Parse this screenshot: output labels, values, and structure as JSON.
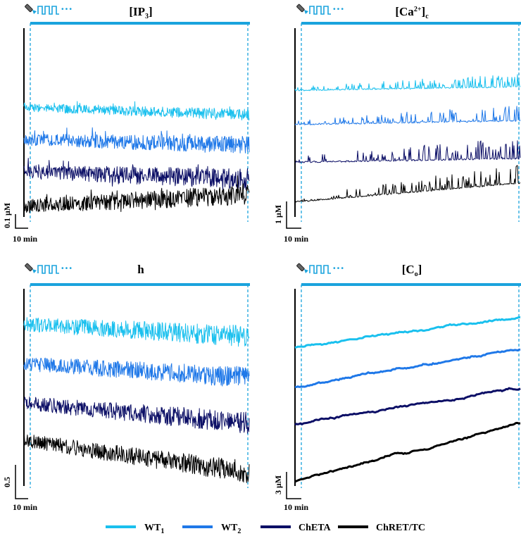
{
  "colors": {
    "WT1": "#1ac0ee",
    "WT2": "#1f78e8",
    "ChETA": "#0c0f66",
    "ChRET/TC": "#000000",
    "stim": "#1aa3dd",
    "axis": "#000000"
  },
  "legend": {
    "items": [
      {
        "name": "WT",
        "sub": "1",
        "series": "WT1"
      },
      {
        "name": "WT",
        "sub": "2",
        "series": "WT2"
      },
      {
        "name": "ChETA",
        "sub": "",
        "series": "ChETA"
      },
      {
        "name": "ChRET/TC",
        "sub": "",
        "series": "ChRET/TC"
      }
    ]
  },
  "stim_icon": {
    "name": "light-pulse-icon",
    "ellipsis": "···"
  },
  "chart_data": [
    {
      "type": "line",
      "panel": "IP3",
      "title": {
        "pre": "[IP",
        "sub": "3",
        "post": "]"
      },
      "scalebar": {
        "y_label": "0.1 μM",
        "x_label": "10 min"
      },
      "x_range_min": [
        0,
        60
      ],
      "series": [
        {
          "name": "WT1",
          "start": 0.58,
          "end": 0.54,
          "noise": 0.02,
          "spikes": 0.5,
          "style": "noisy"
        },
        {
          "name": "WT2",
          "start": 0.41,
          "end": 0.38,
          "noise": 0.03,
          "spikes": 0.5,
          "style": "noisy"
        },
        {
          "name": "ChETA",
          "start": 0.24,
          "end": 0.2,
          "noise": 0.035,
          "spikes": 0.6,
          "style": "noisy"
        },
        {
          "name": "ChRET/TC",
          "start": 0.055,
          "end": 0.12,
          "noise": 0.035,
          "spikes": 0.6,
          "style": "noisy"
        }
      ]
    },
    {
      "type": "line",
      "panel": "Ca2+c",
      "title": {
        "pre": "[Ca",
        "sup": "2+",
        "post": "]",
        "sub": "c"
      },
      "scalebar": {
        "y_label": "1 μM",
        "x_label": "10 min"
      },
      "x_range_min": [
        0,
        60
      ],
      "series": [
        {
          "name": "WT1",
          "start": 0.67,
          "end": 0.69,
          "noise": 0.006,
          "spikes": 0.05,
          "style": "spiky"
        },
        {
          "name": "WT2",
          "start": 0.49,
          "end": 0.51,
          "noise": 0.008,
          "spikes": 0.06,
          "style": "spiky"
        },
        {
          "name": "ChETA",
          "start": 0.29,
          "end": 0.31,
          "noise": 0.008,
          "spikes": 0.08,
          "style": "spiky"
        },
        {
          "name": "ChRET/TC",
          "start": 0.08,
          "end": 0.18,
          "noise": 0.008,
          "spikes": 0.07,
          "style": "spiky"
        }
      ]
    },
    {
      "type": "line",
      "panel": "h",
      "title": {
        "pre": "h"
      },
      "scalebar": {
        "y_label": "0.5",
        "x_label": "10 min"
      },
      "x_range_min": [
        0,
        60
      ],
      "series": [
        {
          "name": "WT1",
          "start": 0.82,
          "end": 0.76,
          "noise": 0.035,
          "spikes": 0.0,
          "style": "noisy"
        },
        {
          "name": "WT2",
          "start": 0.62,
          "end": 0.55,
          "noise": 0.035,
          "spikes": 0.0,
          "style": "noisy"
        },
        {
          "name": "ChETA",
          "start": 0.42,
          "end": 0.32,
          "noise": 0.035,
          "spikes": 0.0,
          "style": "noisy"
        },
        {
          "name": "ChRET/TC",
          "start": 0.23,
          "end": 0.07,
          "noise": 0.035,
          "spikes": 0.0,
          "style": "noisy"
        }
      ]
    },
    {
      "type": "line",
      "panel": "Co",
      "title": {
        "pre": "[C",
        "sub": "o",
        "post": "]"
      },
      "scalebar": {
        "y_label": "3 μM",
        "x_label": "10 min"
      },
      "x_range_min": [
        0,
        60
      ],
      "series": [
        {
          "name": "WT1",
          "start": 0.7,
          "end": 0.86,
          "noise": 0.004,
          "spikes": 0.0,
          "style": "smooth"
        },
        {
          "name": "WT2",
          "start": 0.5,
          "end": 0.7,
          "noise": 0.004,
          "spikes": 0.0,
          "style": "smooth"
        },
        {
          "name": "ChETA",
          "start": 0.31,
          "end": 0.5,
          "noise": 0.004,
          "spikes": 0.0,
          "style": "smooth"
        },
        {
          "name": "ChRET/TC",
          "start": 0.02,
          "end": 0.32,
          "noise": 0.004,
          "spikes": 0.0,
          "style": "smooth"
        }
      ]
    }
  ]
}
